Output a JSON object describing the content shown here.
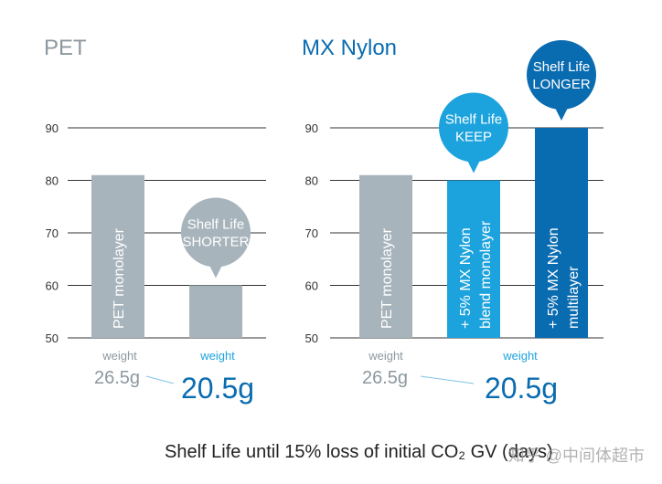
{
  "colors": {
    "gray": "#a7b4bc",
    "light_blue": "#1ca3dd",
    "dark_blue": "#0a6cb0",
    "axis": "#333333",
    "connector": "#7fc4e8"
  },
  "chart_data": [
    {
      "type": "bar",
      "title": "PET",
      "yticks": [
        50,
        60,
        70,
        80,
        90
      ],
      "ylim": [
        50,
        90
      ],
      "categories": [
        "PET monolayer",
        ""
      ],
      "values": [
        81,
        60
      ],
      "bar_colors": [
        "gray",
        "gray"
      ],
      "bubbles": [
        {
          "bar_index": 1,
          "line1": "Shelf Life",
          "line2": "SHORTER",
          "color": "gray"
        }
      ],
      "weights": {
        "label_gray": "weight",
        "label_blue": "weight",
        "value_gray": "26.5g",
        "value_blue": "20.5g"
      }
    },
    {
      "type": "bar",
      "title": "MX Nylon",
      "yticks": [
        50,
        60,
        70,
        80,
        90
      ],
      "ylim": [
        50,
        90
      ],
      "categories": [
        "PET monolayer",
        "+ 5% MX Nylon|blend monolayer",
        "+ 5% MX Nylon|multilayer"
      ],
      "values": [
        81,
        80,
        90
      ],
      "bar_colors": [
        "gray",
        "light_blue",
        "dark_blue"
      ],
      "bubbles": [
        {
          "bar_index": 1,
          "line1": "Shelf Life",
          "line2": "KEEP",
          "color": "light_blue"
        },
        {
          "bar_index": 2,
          "line1": "Shelf Life",
          "line2": "LONGER",
          "color": "dark_blue"
        }
      ],
      "weights": {
        "label_gray": "weight",
        "label_blue": "weight",
        "value_gray": "26.5g",
        "value_blue": "20.5g"
      }
    }
  ],
  "xlabel": "Shelf Life until 15% loss of initial CO₂ GV (days)",
  "watermark": "知乎 @中间体超市"
}
